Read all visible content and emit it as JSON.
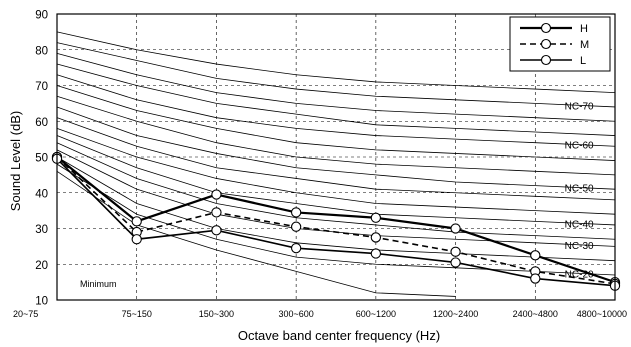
{
  "chart_data": {
    "type": "line",
    "xlabel": "Octave band center frequency (Hz)",
    "ylabel": "Sound Level (dB)",
    "ylim": [
      10,
      90
    ],
    "yticks": [
      10,
      20,
      30,
      40,
      50,
      60,
      70,
      80,
      90
    ],
    "categories": [
      "20~75",
      "75~150",
      "150~300",
      "300~600",
      "600~1200",
      "1200~2400",
      "2400~4800",
      "4800~10000"
    ],
    "grid": "dashed-vertical",
    "legend_position": "top-right",
    "annotation": "Minimum",
    "series": [
      {
        "name": "H",
        "style": "solid-bold",
        "values": [
          50,
          32,
          39.5,
          34.5,
          33,
          30,
          22.5,
          15
        ]
      },
      {
        "name": "M",
        "style": "dashed",
        "values": [
          50,
          29,
          34.5,
          30.5,
          27.5,
          23.5,
          18,
          14.5
        ]
      },
      {
        "name": "L",
        "style": "solid",
        "values": [
          49.5,
          27,
          29.5,
          24.5,
          23,
          20.5,
          16,
          14
        ]
      }
    ],
    "nc_curves": [
      {
        "label": "",
        "values": [
          85,
          80,
          76,
          73,
          71,
          70,
          69,
          68
        ]
      },
      {
        "label": "NC-70",
        "values": [
          82,
          77,
          72,
          69,
          67,
          66,
          65,
          64
        ]
      },
      {
        "label": "",
        "values": [
          79,
          73,
          68,
          65,
          63,
          62,
          61,
          60
        ]
      },
      {
        "label": "",
        "values": [
          76,
          70,
          65,
          62,
          59,
          58,
          57,
          56
        ]
      },
      {
        "label": "NC-60",
        "values": [
          73,
          66,
          61,
          58,
          56,
          55,
          54,
          53
        ]
      },
      {
        "label": "",
        "values": [
          70,
          63,
          58,
          54,
          52,
          51,
          50,
          49
        ]
      },
      {
        "label": "",
        "values": [
          67,
          60,
          54,
          50,
          48,
          47,
          46,
          45
        ]
      },
      {
        "label": "NC-50",
        "values": [
          64,
          56,
          51,
          47,
          45,
          43,
          42,
          41
        ]
      },
      {
        "label": "",
        "values": [
          61,
          53,
          47,
          44,
          41,
          40,
          39,
          38
        ]
      },
      {
        "label": "",
        "values": [
          58,
          50,
          44,
          40,
          37,
          36,
          35,
          34
        ]
      },
      {
        "label": "NC-40",
        "values": [
          56,
          47,
          40,
          37,
          34,
          33,
          32,
          31
        ]
      },
      {
        "label": "",
        "values": [
          54,
          44,
          37,
          33,
          31,
          29,
          28,
          27
        ]
      },
      {
        "label": "NC-30",
        "values": [
          52,
          41,
          34,
          30,
          28,
          27,
          26,
          25
        ]
      },
      {
        "label": "",
        "values": [
          50,
          37,
          30,
          26,
          24,
          23,
          22,
          21
        ]
      },
      {
        "label": "NC-20",
        "values": [
          48,
          34,
          27,
          22,
          20,
          19,
          18,
          17
        ]
      },
      {
        "label": "",
        "values": [
          46,
          31,
          24,
          18,
          12,
          11,
          null,
          null
        ]
      }
    ]
  }
}
